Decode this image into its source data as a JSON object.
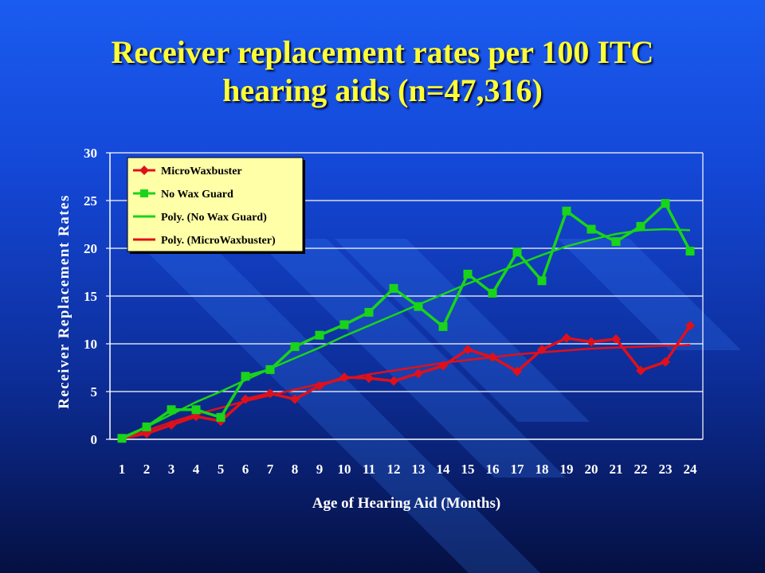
{
  "slide": {
    "title_line1": "Receiver replacement rates per 100 ITC",
    "title_line2": "hearing aids (n=47,316)"
  },
  "colors": {
    "red": "#e0101a",
    "green": "#19d419",
    "legend_bg": "#ffffa8",
    "gridline": "#ffffff"
  },
  "chart_data": {
    "type": "line",
    "xlabel": "Age of Hearing Aid (Months)",
    "ylabel": "Receiver Replacement Rates",
    "x": [
      1,
      2,
      3,
      4,
      5,
      6,
      7,
      8,
      9,
      10,
      11,
      12,
      13,
      14,
      15,
      16,
      17,
      18,
      19,
      20,
      21,
      22,
      23,
      24
    ],
    "ylim": [
      0,
      30
    ],
    "yticks": [
      0,
      5,
      10,
      15,
      20,
      25,
      30
    ],
    "grid": "horizontal",
    "legend_position": "top-left",
    "series": [
      {
        "name": "MicroWaxbuster",
        "color": "#e0101a",
        "marker": "diamond",
        "values": [
          0.1,
          0.6,
          1.5,
          2.4,
          1.9,
          4.2,
          4.8,
          4.2,
          5.6,
          6.5,
          6.4,
          6.1,
          6.9,
          7.7,
          9.4,
          8.6,
          7.1,
          9.4,
          10.6,
          10.2,
          10.5,
          7.2,
          8.1,
          11.9
        ]
      },
      {
        "name": "No Wax Guard",
        "color": "#19d419",
        "marker": "square",
        "values": [
          0.1,
          1.3,
          3.1,
          3.1,
          2.3,
          6.6,
          7.3,
          9.7,
          10.9,
          12.0,
          13.3,
          15.8,
          13.9,
          11.8,
          17.3,
          15.3,
          19.6,
          16.6,
          23.9,
          22.0,
          20.7,
          22.3,
          24.7,
          19.7
        ]
      },
      {
        "name": "Poly. (No Wax Guard)",
        "color": "#19d419",
        "marker": "none",
        "values": [
          0.2,
          1.3,
          2.6,
          3.9,
          5.0,
          6.2,
          7.4,
          8.5,
          9.6,
          10.8,
          11.9,
          13.0,
          14.1,
          15.2,
          16.3,
          17.3,
          18.3,
          19.3,
          20.2,
          20.9,
          21.5,
          21.9,
          22.0,
          21.9
        ]
      },
      {
        "name": "Poly. (MicroWaxbuster)",
        "color": "#e0101a",
        "marker": "none",
        "values": [
          0.0,
          0.9,
          1.8,
          2.6,
          3.3,
          4.0,
          4.6,
          5.2,
          5.8,
          6.3,
          6.8,
          7.2,
          7.6,
          8.0,
          8.3,
          8.6,
          8.9,
          9.1,
          9.3,
          9.5,
          9.6,
          9.7,
          9.8,
          9.9
        ]
      }
    ]
  }
}
